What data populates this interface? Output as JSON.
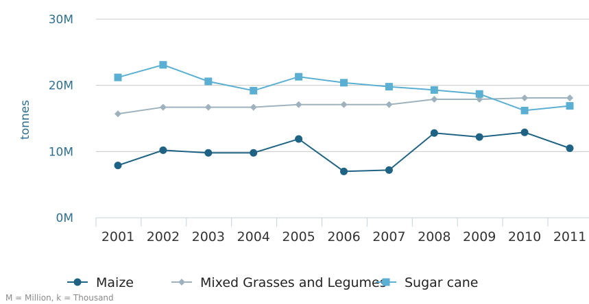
{
  "chart_data": {
    "type": "line",
    "ylabel": "tonnes",
    "ylim": [
      0,
      30000000
    ],
    "y_ticks": [
      {
        "value": 0,
        "label": "0M"
      },
      {
        "value": 10000000,
        "label": "10M"
      },
      {
        "value": 20000000,
        "label": "20M"
      },
      {
        "value": 30000000,
        "label": "30M"
      }
    ],
    "categories": [
      "2001",
      "2002",
      "2003",
      "2004",
      "2005",
      "2006",
      "2007",
      "2008",
      "2009",
      "2010",
      "2011"
    ],
    "grid": true,
    "legend_position": "bottom",
    "series": [
      {
        "name": "Maize",
        "color": "#1f6384",
        "marker": "circle",
        "values": [
          7900000,
          10200000,
          9800000,
          9800000,
          11900000,
          7000000,
          7200000,
          12800000,
          12200000,
          12900000,
          10500000
        ]
      },
      {
        "name": "Mixed Grasses and Legumes",
        "color": "#9eb2be",
        "marker": "diamond",
        "values": [
          15700000,
          16700000,
          16700000,
          16700000,
          17100000,
          17100000,
          17100000,
          17900000,
          17900000,
          18100000,
          18100000
        ]
      },
      {
        "name": "Sugar cane",
        "color": "#5aafd3",
        "marker": "square",
        "values": [
          21200000,
          23100000,
          20600000,
          19200000,
          21300000,
          20400000,
          19800000,
          19300000,
          18700000,
          16200000,
          16900000
        ]
      }
    ]
  },
  "footnote": "M = Million, k = Thousand"
}
